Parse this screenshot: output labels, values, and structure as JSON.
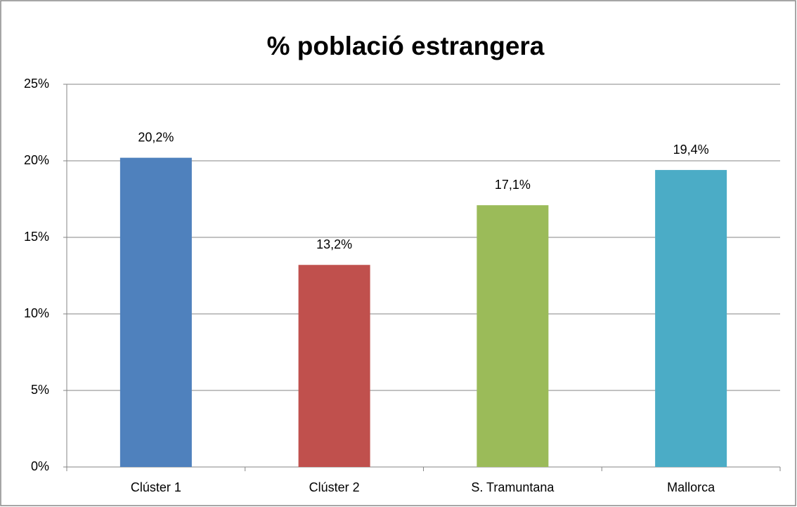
{
  "chart_data": {
    "type": "bar",
    "title": "% població estrangera",
    "categories": [
      "Clúster 1",
      "Clúster 2",
      "S. Tramuntana",
      "Mallorca"
    ],
    "values": [
      20.2,
      13.2,
      17.1,
      19.4
    ],
    "value_labels": [
      "20,2%",
      "13,2%",
      "17,1%",
      "19,4%"
    ],
    "colors": [
      "#4f81bd",
      "#c0504d",
      "#9bbb59",
      "#4bacc6"
    ],
    "ylim": [
      0,
      25
    ],
    "yticks": [
      {
        "value": 0,
        "label": "0%"
      },
      {
        "value": 5,
        "label": "5%"
      },
      {
        "value": 10,
        "label": "10%"
      },
      {
        "value": 15,
        "label": "15%"
      },
      {
        "value": 20,
        "label": "20%"
      },
      {
        "value": 25,
        "label": "25%"
      }
    ],
    "grid": true
  }
}
